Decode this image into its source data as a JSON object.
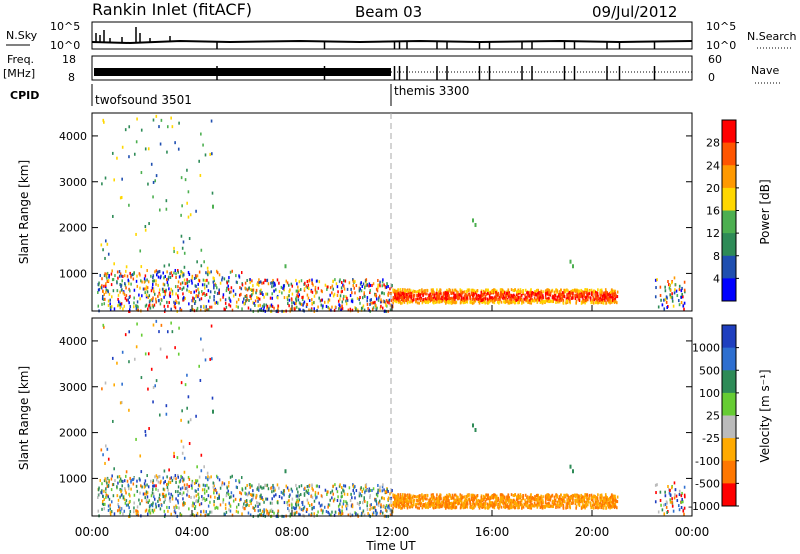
{
  "header": {
    "station": "Rankin Inlet (fitACF)",
    "beam": "Beam 03",
    "date": "09/Jul/2012"
  },
  "top_panels": {
    "nsky_label": "N.Sky",
    "nsky_ticks": [
      "10^5",
      "10^0"
    ],
    "nsearch_label": "N.Search",
    "nsearch_ticks": [
      "10^5",
      "10^0"
    ],
    "freq_label": "Freq.",
    "freq_unit": "[MHz]",
    "freq_ticks": [
      "18",
      "8"
    ],
    "nave_label": "Nave",
    "nave_ticks": [
      "60",
      "0"
    ],
    "cpid_label": "CPID",
    "cpid_modes": [
      {
        "name": "twofsound 3501",
        "start_hour": 0
      },
      {
        "name": "themis 3300",
        "start_hour": 12
      }
    ]
  },
  "chart_data": [
    {
      "type": "heatmap",
      "title": "Power",
      "xlabel": "",
      "ylabel": "Slant Range [km]",
      "xlim_hours": [
        0,
        24
      ],
      "ylim": [
        180,
        4500
      ],
      "y_ticks": [
        1000,
        2000,
        3000,
        4000
      ],
      "colorbar": {
        "label": "Power [dB]",
        "ticks": [
          "4",
          "8",
          "12",
          "16",
          "20",
          "24",
          "28"
        ],
        "colors": [
          "#0000ff",
          "#1f4fb0",
          "#2e8b57",
          "#4caf50",
          "#ffd700",
          "#ff9900",
          "#ff5500",
          "#ff0000"
        ]
      },
      "regions": [
        {
          "t0": 0.3,
          "t1": 12.0,
          "r0": 200,
          "r1": 1000,
          "level": "mixed"
        },
        {
          "t0": 12.0,
          "t1": 21.0,
          "r0": 350,
          "r1": 700,
          "level": "strong"
        },
        {
          "t0": 0.3,
          "t1": 1.2,
          "r0": 1500,
          "r1": 2200,
          "level": "weak"
        }
      ]
    },
    {
      "type": "heatmap",
      "title": "Velocity",
      "xlabel": "Time UT",
      "ylabel": "Slant Range [km]",
      "xlim_hours": [
        0,
        24
      ],
      "ylim": [
        180,
        4500
      ],
      "y_ticks": [
        1000,
        2000,
        3000,
        4000
      ],
      "x_ticks": [
        "00:00",
        "04:00",
        "08:00",
        "12:00",
        "16:00",
        "20:00",
        "00:00"
      ],
      "colorbar": {
        "label": "Velocity [m s⁻¹]",
        "ticks": [
          "1000",
          "500",
          "100",
          "25",
          "-25",
          "-100",
          "-500",
          "-1000"
        ],
        "colors": [
          "#1f3fbf",
          "#2e6fd0",
          "#2e8b57",
          "#66cc33",
          "#bbbbbb",
          "#ffaa00",
          "#ff7700",
          "#ff0000"
        ]
      }
    }
  ]
}
